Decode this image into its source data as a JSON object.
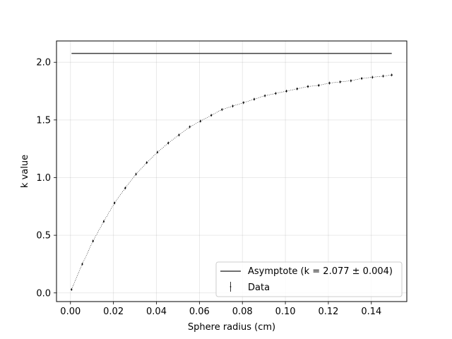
{
  "chart_data": {
    "type": "scatter",
    "title": "",
    "xlabel": "Sphere radius (cm)",
    "ylabel": "k value",
    "xlim": [
      -0.0065,
      0.1565
    ],
    "ylim": [
      -0.075,
      2.185
    ],
    "xticks": [
      0.0,
      0.02,
      0.04,
      0.06,
      0.08,
      0.1,
      0.12,
      0.14
    ],
    "xtick_labels": [
      "0.00",
      "0.02",
      "0.04",
      "0.06",
      "0.08",
      "0.10",
      "0.12",
      "0.14"
    ],
    "yticks": [
      0.0,
      0.5,
      1.0,
      1.5,
      2.0
    ],
    "ytick_labels": [
      "0.0",
      "0.5",
      "1.0",
      "1.5",
      "2.0"
    ],
    "grid": true,
    "legend_position": "lower-right",
    "series": [
      {
        "name": "Asymptote (k = 2.077 ± 0.004)",
        "kind": "line",
        "color": "#404040",
        "x": [
          0.0005,
          0.1495
        ],
        "y": [
          2.077,
          2.077
        ]
      },
      {
        "name": "Data",
        "kind": "errorbar",
        "color": "#000000",
        "x": [
          0.0005,
          0.0055,
          0.0105,
          0.0155,
          0.0205,
          0.0255,
          0.0305,
          0.0355,
          0.0405,
          0.0455,
          0.0505,
          0.0555,
          0.0605,
          0.0655,
          0.0705,
          0.0755,
          0.0805,
          0.0855,
          0.0905,
          0.0955,
          0.1005,
          0.1055,
          0.1105,
          0.1155,
          0.1205,
          0.1255,
          0.1305,
          0.1355,
          0.1405,
          0.1455,
          0.1495
        ],
        "y": [
          0.03,
          0.25,
          0.45,
          0.62,
          0.78,
          0.91,
          1.03,
          1.13,
          1.22,
          1.3,
          1.37,
          1.44,
          1.49,
          1.54,
          1.59,
          1.62,
          1.65,
          1.68,
          1.71,
          1.73,
          1.75,
          1.77,
          1.79,
          1.8,
          1.82,
          1.83,
          1.84,
          1.86,
          1.87,
          1.88,
          1.89
        ]
      }
    ]
  }
}
